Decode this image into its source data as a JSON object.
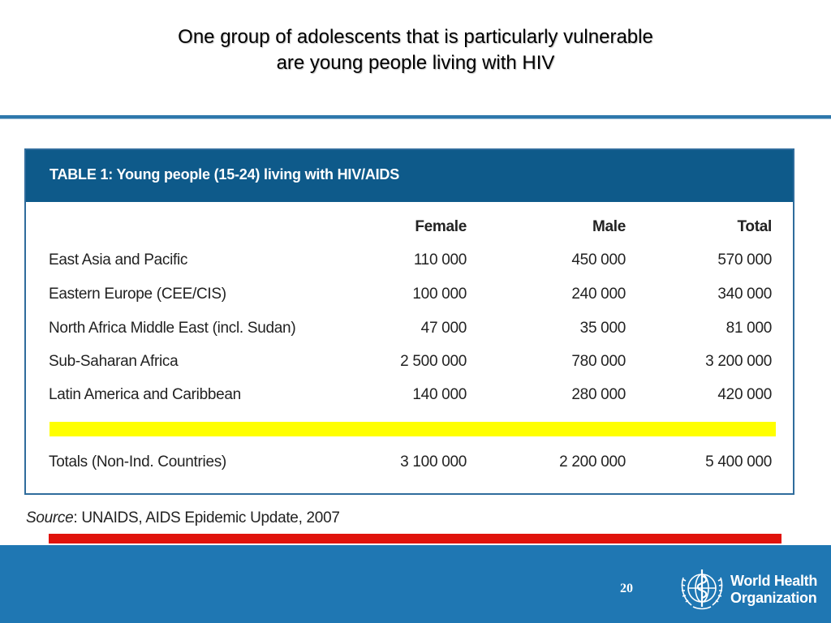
{
  "slide": {
    "title_line1": "One group of adolescents that is particularly vulnerable",
    "title_line2": "are young people living with HIV",
    "page_number": "20"
  },
  "table": {
    "caption": "TABLE 1: Young people (15-24) living with HIV/AIDS",
    "columns": [
      "Female",
      "Male",
      "Total"
    ],
    "rows": [
      {
        "region": "East Asia and Pacific",
        "female": "110 000",
        "male": "450 000",
        "total": "570 000"
      },
      {
        "region": "Eastern Europe (CEE/CIS)",
        "female": "100 000",
        "male": "240 000",
        "total": "340 000"
      },
      {
        "region": "North Africa Middle East (incl. Sudan)",
        "female": "47 000",
        "male": "35 000",
        "total": "81 000"
      },
      {
        "region": "Sub-Saharan Africa",
        "female": "2 500 000",
        "male": "780 000",
        "total": "3 200 000"
      },
      {
        "region": "Latin America and Caribbean",
        "female": "140 000",
        "male": "280 000",
        "total": "420 000"
      }
    ],
    "totals": {
      "region": "Totals (Non-Ind. Countries)",
      "female": "3 100 000",
      "male": "2 200 000",
      "total": "5 400 000"
    }
  },
  "source": {
    "label": "Source",
    "text": ": UNAIDS, AIDS Epidemic Update, 2007"
  },
  "logo": {
    "line1": "World Health",
    "line2": "Organization"
  },
  "colors": {
    "header_blue": "#0e5a8a",
    "footer_blue": "#1f77b3",
    "highlight_yellow": "#ffff00",
    "accent_red": "#e0120b"
  }
}
